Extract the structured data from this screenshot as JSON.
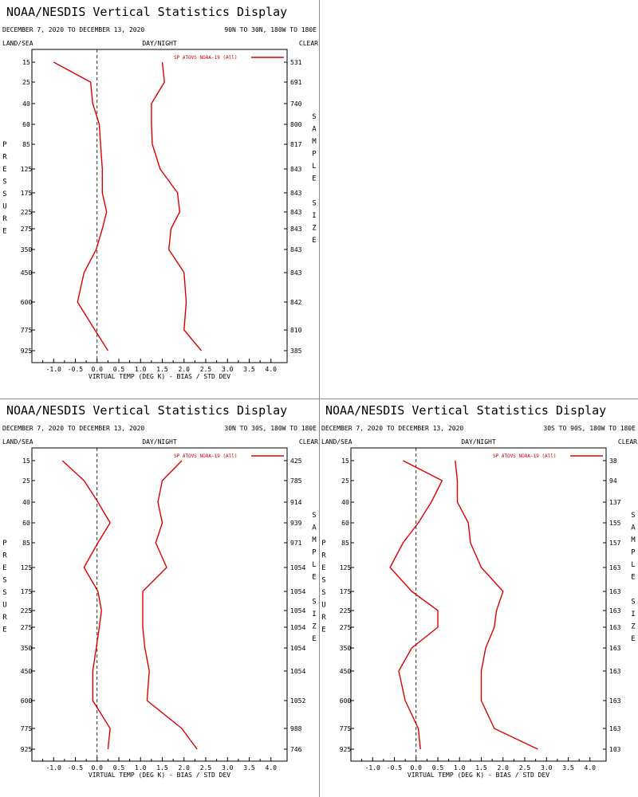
{
  "page": {
    "background": "#ffffff",
    "series_color": "#dd0000",
    "axis_color": "#000000",
    "zero_line_color": "#000000"
  },
  "chart_data": [
    {
      "type": "line",
      "panel": "top-left",
      "title": "NOAA/NESDIS Vertical Statistics Display",
      "date_range": "DECEMBER 7, 2020 TO DECEMBER 13, 2020",
      "region": "90N TO 30N, 180W TO 180E",
      "surface_label": "LAND/SEA",
      "time_label": "DAY/NIGHT",
      "sky_label": "CLEAR",
      "ylabel": "PRESSURE",
      "right_label": "SAMPLE SIZE",
      "xlabel": "VIRTUAL TEMP (DEG K) - BIAS / STD DEV",
      "x_ticks": [
        "-1.0",
        "-0.5",
        "0.0",
        "0.5",
        "1.0",
        "1.5",
        "2.0",
        "2.5",
        "3.0",
        "3.5",
        "4.0"
      ],
      "xlim": [
        -1.5,
        4.0
      ],
      "legend": "SP ATOVS NOAA-19 (All)",
      "pressure": [
        "15",
        "25",
        "40",
        "60",
        "85",
        "125",
        "175",
        "225",
        "275",
        "350",
        "450",
        "600",
        "775",
        "925"
      ],
      "sample_size": [
        "531",
        "691",
        "740",
        "800",
        "817",
        "843",
        "843",
        "843",
        "843",
        "843",
        "843",
        "842",
        "810",
        "385"
      ],
      "series": [
        {
          "kind": "bias",
          "values": [
            -1.0,
            -0.15,
            -0.1,
            0.05,
            0.08,
            0.12,
            0.12,
            0.22,
            0.12,
            -0.02,
            -0.3,
            -0.45,
            -0.05,
            0.25
          ]
        },
        {
          "kind": "std_dev",
          "values": [
            1.5,
            1.55,
            1.25,
            1.25,
            1.27,
            1.45,
            1.85,
            1.9,
            1.7,
            1.65,
            2.0,
            2.05,
            2.0,
            2.4
          ]
        }
      ]
    },
    {
      "type": "line",
      "panel": "bottom-left",
      "title": "NOAA/NESDIS Vertical Statistics Display",
      "date_range": "DECEMBER 7, 2020 TO DECEMBER 13, 2020",
      "region": "30N TO 30S, 180W TO 180E",
      "surface_label": "LAND/SEA",
      "time_label": "DAY/NIGHT",
      "sky_label": "CLEAR",
      "ylabel": "PRESSURE",
      "right_label": "SAMPLE SIZE",
      "xlabel": "VIRTUAL TEMP (DEG K) - BIAS / STD DEV",
      "x_ticks": [
        "-1.0",
        "-0.5",
        "0.0",
        "0.5",
        "1.0",
        "1.5",
        "2.0",
        "2.5",
        "3.0",
        "3.5",
        "4.0"
      ],
      "xlim": [
        -1.5,
        4.0
      ],
      "legend": "SP ATOVS NOAA-19 (All)",
      "pressure": [
        "15",
        "25",
        "40",
        "60",
        "85",
        "125",
        "175",
        "225",
        "275",
        "350",
        "450",
        "600",
        "775",
        "925"
      ],
      "sample_size": [
        "425",
        "785",
        "914",
        "939",
        "971",
        "1054",
        "1054",
        "1054",
        "1054",
        "1054",
        "1054",
        "1052",
        "988",
        "746"
      ],
      "series": [
        {
          "kind": "bias",
          "values": [
            -0.8,
            -0.3,
            0.02,
            0.3,
            0.02,
            -0.3,
            0.02,
            0.1,
            0.05,
            -0.02,
            -0.1,
            -0.1,
            0.3,
            0.25
          ]
        },
        {
          "kind": "std_dev",
          "values": [
            1.95,
            1.5,
            1.4,
            1.5,
            1.35,
            1.6,
            1.05,
            1.05,
            1.05,
            1.1,
            1.2,
            1.15,
            1.95,
            2.3
          ]
        }
      ]
    },
    {
      "type": "line",
      "panel": "bottom-right",
      "title": "NOAA/NESDIS Vertical Statistics Display",
      "date_range": "DECEMBER 7, 2020 TO DECEMBER 13, 2020",
      "region": "30S TO 90S, 180W TO 180E",
      "surface_label": "LAND/SEA",
      "time_label": "DAY/NIGHT",
      "sky_label": "CLEAR",
      "ylabel": "PRESSURE",
      "right_label": "SAMPLE SIZE",
      "xlabel": "VIRTUAL TEMP (DEG K) - BIAS / STD DEV",
      "x_ticks": [
        "-1.0",
        "-0.5",
        "0.0",
        "0.5",
        "1.0",
        "1.5",
        "2.0",
        "2.5",
        "3.0",
        "3.5",
        "4.0"
      ],
      "xlim": [
        -1.5,
        4.0
      ],
      "legend": "SP ATOVS NOAA-19 (All)",
      "pressure": [
        "15",
        "25",
        "40",
        "60",
        "85",
        "125",
        "175",
        "225",
        "275",
        "350",
        "450",
        "600",
        "775",
        "925"
      ],
      "sample_size": [
        "38",
        "94",
        "137",
        "155",
        "157",
        "163",
        "163",
        "163",
        "163",
        "163",
        "163",
        "163",
        "163",
        "103"
      ],
      "series": [
        {
          "kind": "bias",
          "values": [
            -0.3,
            0.6,
            0.35,
            0.05,
            -0.3,
            -0.6,
            -0.1,
            0.5,
            0.5,
            -0.1,
            -0.4,
            -0.25,
            0.05,
            0.1
          ]
        },
        {
          "kind": "std_dev",
          "values": [
            0.9,
            0.95,
            0.95,
            1.2,
            1.25,
            1.5,
            2.0,
            1.85,
            1.8,
            1.6,
            1.5,
            1.5,
            1.8,
            2.8
          ]
        }
      ]
    }
  ]
}
